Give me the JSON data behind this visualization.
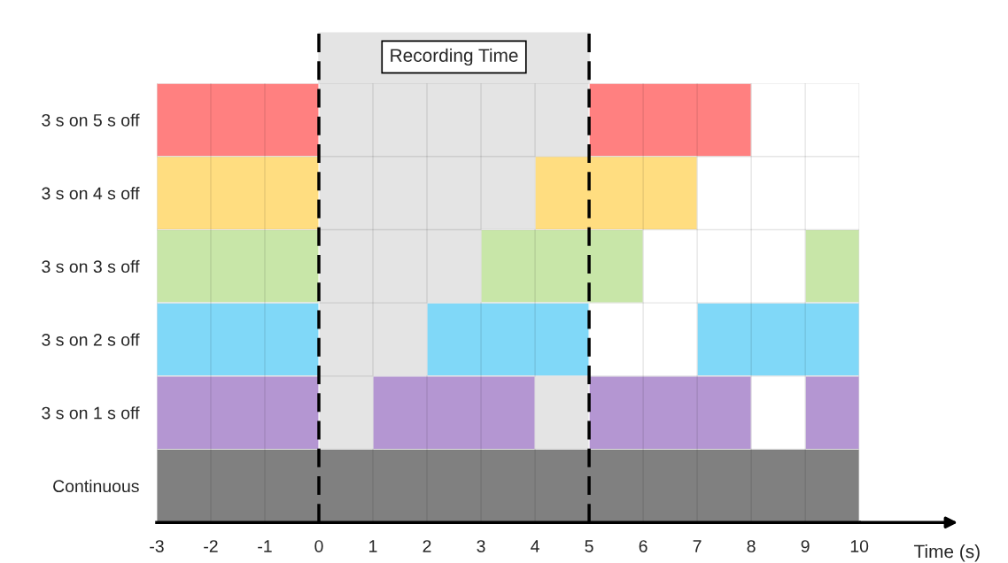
{
  "chart_data": {
    "type": "bar",
    "orientation": "horizontal",
    "xlabel": "Time (s)",
    "categories": [
      "3 s on 5 s off",
      "3 s on 4 s off",
      "3 s on 3 s off",
      "3 s on 2 s off",
      "3 s on 1 s off",
      "Continuous"
    ],
    "series": [
      {
        "values": [
          3,
          3,
          3,
          3,
          3,
          13
        ],
        "base": [
          -3,
          -3,
          -3,
          -3,
          -3,
          -3
        ],
        "colors": [
          "#ff8080",
          "#ffdd80",
          "#c8e6a8",
          "#80d8f8",
          "#b496d2",
          "#808080"
        ]
      },
      {
        "values": [
          3,
          3,
          3,
          3,
          3,
          null
        ],
        "base": [
          5,
          4,
          3,
          2,
          1,
          null
        ],
        "colors": [
          "#ff8080",
          "#ffdd80",
          "#c8e6a8",
          "#80d8f8",
          "#b496d2",
          "#808080"
        ]
      },
      {
        "values": [
          null,
          null,
          1,
          3,
          3,
          null
        ],
        "base": [
          null,
          null,
          9,
          7,
          5,
          null
        ],
        "colors": [
          "#ff8080",
          "#ffdd80",
          "#c8e6a8",
          "#80d8f8",
          "#b496d2",
          "#808080"
        ]
      },
      {
        "values": [
          null,
          null,
          null,
          null,
          1,
          null
        ],
        "base": [
          null,
          null,
          null,
          null,
          9,
          null
        ],
        "colors": [
          "#ff8080",
          "#ffdd80",
          "#c8e6a8",
          "#80d8f8",
          "#b496d2",
          "#808080"
        ]
      }
    ],
    "bands": [
      {
        "axis": "x",
        "from": 0,
        "to": 5,
        "label": "Recording Time",
        "color": "#d9d9d9"
      }
    ],
    "xlim": [
      -3,
      10
    ],
    "xticks": [
      -3,
      -2,
      -1,
      0,
      1,
      2,
      3,
      4,
      5,
      6,
      7,
      8,
      9,
      10
    ],
    "grid": "x",
    "legend": false
  }
}
